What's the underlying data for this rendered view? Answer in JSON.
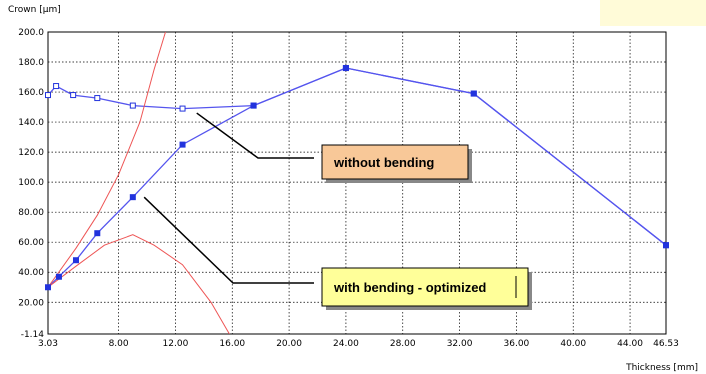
{
  "chart_data": {
    "type": "line",
    "ylabel": "Crown  [µm]",
    "xlabel": "Thickness  [mm]",
    "xlim": [
      3.03,
      46.53
    ],
    "ylim": [
      -1.14,
      200.0
    ],
    "x_ticks": [
      "3.03",
      "8.00",
      "12.00",
      "16.00",
      "20.00",
      "24.00",
      "28.00",
      "32.00",
      "36.00",
      "40.00",
      "44.00",
      "46.53"
    ],
    "x_tick_values": [
      3.03,
      8,
      12,
      16,
      20,
      24,
      28,
      32,
      36,
      40,
      44,
      46.53
    ],
    "y_ticks": [
      "200.0",
      "180.0",
      "160.0",
      "140.0",
      "120.0",
      "100.0",
      "80.00",
      "60.00",
      "40.00",
      "20.00",
      "-1.14"
    ],
    "y_tick_values": [
      200,
      180,
      160,
      140,
      120,
      100,
      80,
      60,
      40,
      20,
      -1.14
    ],
    "grid": true,
    "series": [
      {
        "label": "without bending",
        "color": "#5555ee",
        "marker": "open-square",
        "points": [
          [
            3.03,
            158
          ],
          [
            3.6,
            164
          ],
          [
            4.8,
            158
          ],
          [
            6.5,
            156
          ],
          [
            9.0,
            151
          ],
          [
            12.5,
            149
          ],
          [
            17.5,
            151
          ],
          [
            24.0,
            176
          ],
          [
            33.0,
            159
          ],
          [
            46.53,
            58
          ]
        ]
      },
      {
        "label": "with bending - optimized",
        "color": "#5555ee",
        "marker": "filled-square",
        "points": [
          [
            3.03,
            30
          ],
          [
            3.8,
            37
          ],
          [
            5.0,
            48
          ],
          [
            6.5,
            66
          ],
          [
            9.0,
            90
          ],
          [
            12.5,
            125
          ],
          [
            17.5,
            151
          ],
          [
            24.0,
            176
          ],
          [
            33.0,
            159
          ],
          [
            46.53,
            58
          ]
        ]
      },
      {
        "color": "#ee5555",
        "marker": "none",
        "points": [
          [
            3.03,
            30
          ],
          [
            5.0,
            56
          ],
          [
            6.5,
            78
          ],
          [
            8.0,
            105
          ],
          [
            9.5,
            140
          ],
          [
            10.5,
            175
          ],
          [
            11.3,
            200
          ]
        ]
      },
      {
        "color": "#ee5555",
        "marker": "none",
        "points": [
          [
            3.03,
            30
          ],
          [
            5.0,
            44
          ],
          [
            7.0,
            58
          ],
          [
            9.0,
            65
          ],
          [
            10.5,
            58
          ],
          [
            12.5,
            45
          ],
          [
            14.5,
            20
          ],
          [
            15.8,
            -1.14
          ]
        ]
      }
    ],
    "annotations": [
      {
        "text": "without bending",
        "fill": "#f8c898",
        "pointer_to": [
          13.5,
          146
        ]
      },
      {
        "text": "with bending - optimized",
        "fill": "#ffff99",
        "pointer_to": [
          9.8,
          90
        ]
      }
    ],
    "background_note_colors": {
      "top_right_band": "#fffbd8"
    }
  }
}
